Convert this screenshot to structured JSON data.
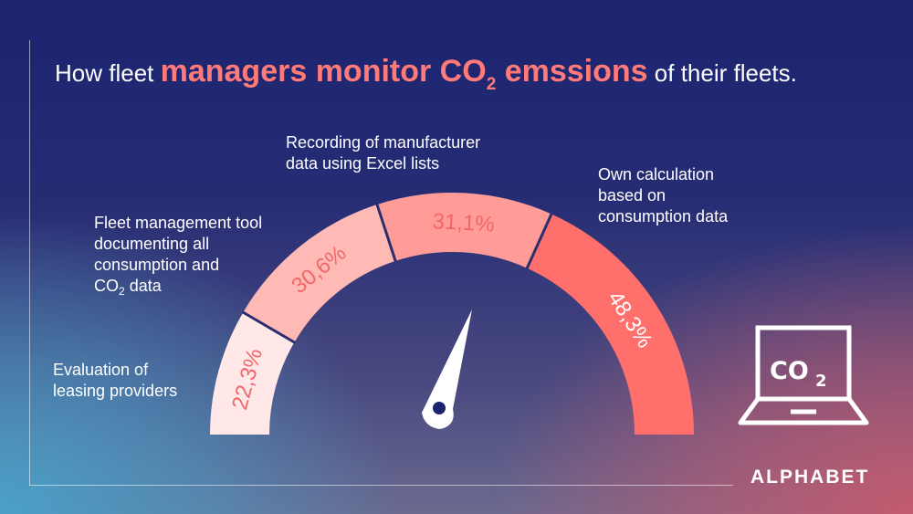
{
  "title": {
    "part1": "How fleet ",
    "highlight": "managers monitor CO",
    "highlight_sub": "2",
    "highlight_end": " emssions",
    "part2": " of their fleets."
  },
  "labels": {
    "leasing": [
      "Evaluation of",
      "leasing providers"
    ],
    "tool_lines": [
      "Fleet management tool",
      "documenting all",
      "consumption and"
    ],
    "tool_last_pre": "CO",
    "tool_last_sub": "2",
    "tool_last_post": " data",
    "excel": [
      "Recording of manufacturer",
      "data using Excel lists"
    ],
    "own": [
      "Own calculation",
      "based on",
      "consumption data"
    ]
  },
  "icon": {
    "name": "laptop-co2-icon",
    "text": "CO",
    "sub": "2"
  },
  "logo": "ALPHABET",
  "colors": {
    "seg1": "#ffe8e7",
    "seg2": "#ffbab6",
    "seg3": "#ff9c98",
    "seg4": "#ff6f6b",
    "pct_text": "#f0676a",
    "needle": "#ffffff",
    "needle_dot": "#1c2470"
  },
  "chart_data": {
    "type": "gauge",
    "categories": [
      "Evaluation of leasing providers",
      "Fleet management tool documenting all consumption and CO2 data",
      "Recording of manufacturer data using Excel lists",
      "Own calculation based on consumption data"
    ],
    "values": [
      22.3,
      30.6,
      31.1,
      48.3
    ],
    "value_labels": [
      "22,3%",
      "30,6%",
      "31,1%",
      "48,3%"
    ],
    "unit": "%"
  }
}
